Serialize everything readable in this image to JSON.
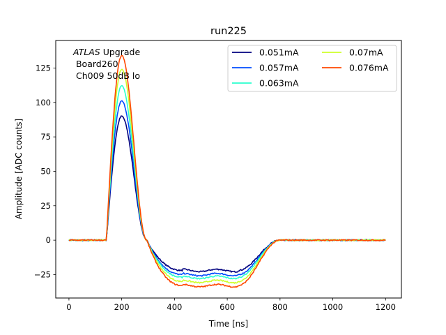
{
  "chart_data": {
    "type": "line",
    "title": "run225",
    "xlabel": "Time [ns]",
    "ylabel": "Amplitude [ADC counts]",
    "xlim": [
      -50,
      1260
    ],
    "ylim": [
      -42,
      145
    ],
    "xticks": [
      0,
      200,
      400,
      600,
      800,
      1000,
      1200
    ],
    "yticks": [
      -25,
      0,
      25,
      50,
      75,
      100,
      125
    ],
    "grid": false,
    "legend_placement": "upper right",
    "legend_columns": 2,
    "annotation": {
      "line1_italic": "ATLAS",
      "line1_rest": " Upgrade",
      "line2": " Board260",
      "line3": " Ch009 50dB lo"
    },
    "series": [
      {
        "name": "0.051mA",
        "color": "#00007f",
        "peak": 90,
        "undershoot": -22
      },
      {
        "name": "0.057mA",
        "color": "#004cff",
        "peak": 101,
        "undershoot": -25
      },
      {
        "name": "0.063mA",
        "color": "#29ffce",
        "peak": 112,
        "undershoot": -27
      },
      {
        "name": "0.07mA",
        "color": "#ceff29",
        "peak": 124,
        "undershoot": -30
      },
      {
        "name": "0.076mA",
        "color": "#ff4800",
        "peak": 134,
        "undershoot": -33
      }
    ]
  }
}
